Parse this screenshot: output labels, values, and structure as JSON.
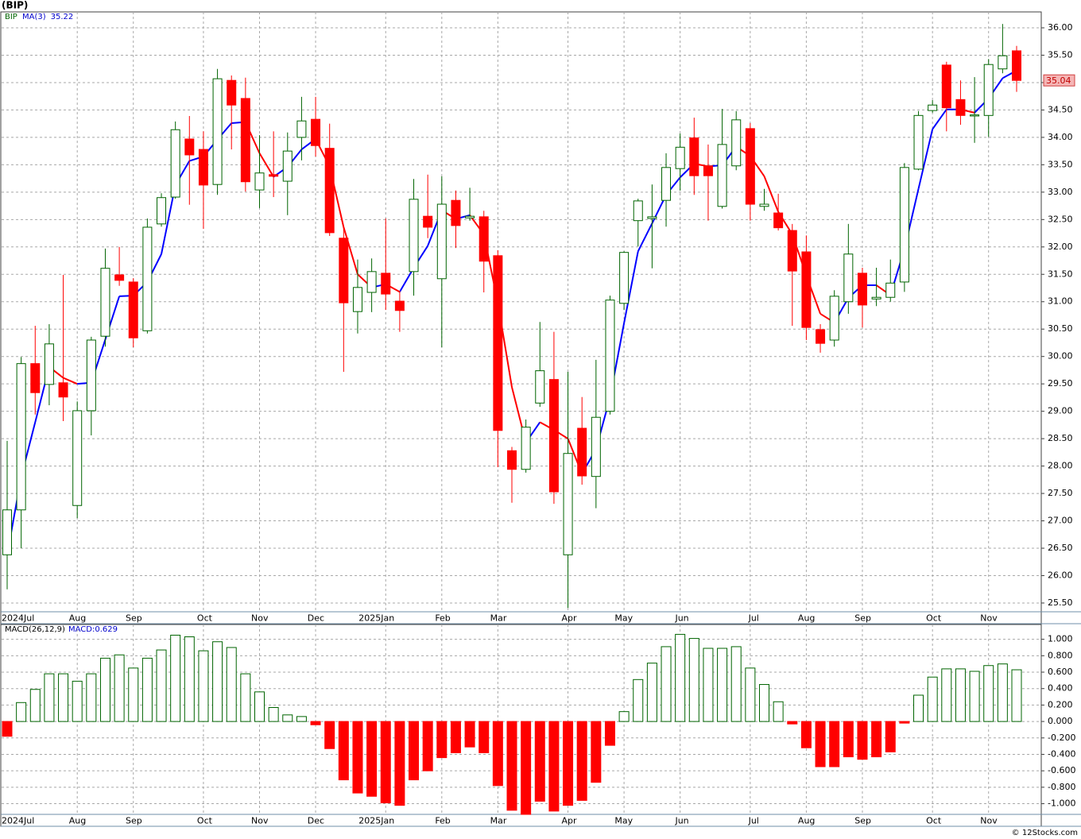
{
  "footer": "© 12Stocks.com",
  "chart_data": [
    {
      "type": "candlestick",
      "title": "(BIP)",
      "symbol": "BIP",
      "categories": [
        "2024Jul",
        null,
        null,
        null,
        null,
        "Aug",
        null,
        null,
        null,
        "Sep",
        null,
        null,
        null,
        null,
        "Oct",
        null,
        null,
        null,
        "Nov",
        null,
        null,
        null,
        "Dec",
        null,
        null,
        null,
        null,
        "2025Jan",
        null,
        null,
        null,
        "Feb",
        null,
        null,
        null,
        "Mar",
        null,
        null,
        null,
        null,
        "Apr",
        null,
        null,
        null,
        "May",
        null,
        null,
        null,
        "Jun",
        null,
        null,
        null,
        null,
        "Jul",
        null,
        null,
        null,
        "Aug",
        null,
        null,
        null,
        "Sep",
        null,
        null,
        null,
        null,
        "Oct",
        null,
        null,
        null,
        "Nov",
        null,
        null
      ],
      "open": [
        26.38,
        27.2,
        29.87,
        29.49,
        29.52,
        27.28,
        29.01,
        30.37,
        31.49,
        31.36,
        30.47,
        32.42,
        32.91,
        33.97,
        33.78,
        33.14,
        35.04,
        34.71,
        33.04,
        33.32,
        33.2,
        34.0,
        34.33,
        33.8,
        32.16,
        30.82,
        31.17,
        31.52,
        31.01,
        31.55,
        32.56,
        31.42,
        32.85,
        32.53,
        32.55,
        31.84,
        28.28,
        27.94,
        29.15,
        29.58,
        26.38,
        28.69,
        27.81,
        29.0,
        30.97,
        32.48,
        32.52,
        32.85,
        33.43,
        33.99,
        33.48,
        32.74,
        33.48,
        34.16,
        32.74,
        32.62,
        32.3,
        31.91,
        30.49,
        30.3,
        31.0,
        31.52,
        31.05,
        31.08,
        31.36,
        33.42,
        34.49,
        35.32,
        34.69,
        34.39,
        34.4,
        35.25,
        35.58
      ],
      "high": [
        28.46,
        29.99,
        30.56,
        30.59,
        31.49,
        29.18,
        30.36,
        31.97,
        32.0,
        31.43,
        32.52,
        32.98,
        34.29,
        34.39,
        34.11,
        35.25,
        35.13,
        35.09,
        34.04,
        34.11,
        34.09,
        34.74,
        34.74,
        34.25,
        32.36,
        31.77,
        31.79,
        32.52,
        31.2,
        33.24,
        33.32,
        33.29,
        33.03,
        33.08,
        32.66,
        31.94,
        28.35,
        28.85,
        30.63,
        30.45,
        29.72,
        29.26,
        29.94,
        31.11,
        31.92,
        32.88,
        33.14,
        33.71,
        34.07,
        34.36,
        33.87,
        34.52,
        34.48,
        34.26,
        33.06,
        32.97,
        32.42,
        32.21,
        30.59,
        31.21,
        32.42,
        31.62,
        31.62,
        31.77,
        33.53,
        34.48,
        34.68,
        35.38,
        35.04,
        35.1,
        35.43,
        36.07,
        35.67
      ],
      "low": [
        25.75,
        26.5,
        28.94,
        29.11,
        28.82,
        27.05,
        28.56,
        30.18,
        31.29,
        30.17,
        30.42,
        32.37,
        32.88,
        32.77,
        32.33,
        32.95,
        33.78,
        33.01,
        32.71,
        32.91,
        32.58,
        33.58,
        33.65,
        32.2,
        29.72,
        30.42,
        30.81,
        30.85,
        30.45,
        31.11,
        32.16,
        30.17,
        31.98,
        32.48,
        31.17,
        27.98,
        27.33,
        27.88,
        29.08,
        27.31,
        25.41,
        27.66,
        27.23,
        28.94,
        30.85,
        32.01,
        31.61,
        32.37,
        33.03,
        32.95,
        32.48,
        32.7,
        33.4,
        32.48,
        32.66,
        32.3,
        30.56,
        30.3,
        30.07,
        30.18,
        30.78,
        30.53,
        30.92,
        31.0,
        31.18,
        33.4,
        34.45,
        34.11,
        34.23,
        33.9,
        34.01,
        35.17,
        34.83
      ],
      "close": [
        27.2,
        29.87,
        29.34,
        30.23,
        29.26,
        29.01,
        30.3,
        31.61,
        31.39,
        30.34,
        32.36,
        32.9,
        34.14,
        33.68,
        33.13,
        35.07,
        34.59,
        33.19,
        33.35,
        33.29,
        33.75,
        34.3,
        33.85,
        32.26,
        30.98,
        31.26,
        31.55,
        31.14,
        30.84,
        32.87,
        32.36,
        32.78,
        32.39,
        32.56,
        31.74,
        28.65,
        27.94,
        28.71,
        29.74,
        27.53,
        28.23,
        27.82,
        28.89,
        31.03,
        31.9,
        32.84,
        32.55,
        33.45,
        33.82,
        33.3,
        33.3,
        33.87,
        34.32,
        32.78,
        32.78,
        32.35,
        31.56,
        30.53,
        30.24,
        31.1,
        31.87,
        30.94,
        31.08,
        31.34,
        33.45,
        34.4,
        34.59,
        34.54,
        34.4,
        34.41,
        35.33,
        35.49,
        35.04
      ],
      "up_color": "#006400",
      "down_color": "#ff0000",
      "ma": {
        "name": "MA(3)",
        "up_color": "#0000ff",
        "down_color": "#ff0000",
        "values": [
          26.38,
          27.8,
          28.8,
          29.81,
          29.61,
          29.5,
          29.52,
          30.31,
          31.1,
          31.11,
          31.36,
          31.87,
          33.13,
          33.57,
          33.65,
          33.96,
          34.26,
          34.28,
          33.71,
          33.28,
          33.46,
          33.78,
          33.97,
          33.47,
          32.36,
          31.5,
          31.26,
          31.32,
          31.18,
          31.62,
          32.02,
          32.67,
          32.51,
          32.58,
          32.23,
          30.98,
          29.44,
          28.43,
          28.8,
          28.66,
          28.5,
          27.86,
          28.31,
          29.25,
          30.61,
          31.92,
          32.43,
          32.95,
          33.27,
          33.52,
          33.47,
          33.49,
          33.83,
          33.66,
          33.29,
          32.64,
          32.23,
          31.48,
          30.78,
          30.62,
          31.07,
          31.3,
          31.3,
          31.12,
          31.96,
          33.06,
          34.15,
          34.51,
          34.51,
          34.45,
          34.71,
          35.08,
          35.22
        ]
      },
      "ylim": [
        25.34,
        36.29
      ],
      "yticks": [
        {
          "value": 25.5,
          "label": "25.50"
        },
        {
          "value": 26,
          "label": "26.00"
        },
        {
          "value": 26.5,
          "label": "26.50"
        },
        {
          "value": 27,
          "label": "27.00"
        },
        {
          "value": 27.5,
          "label": "27.50"
        },
        {
          "value": 28,
          "label": "28.00"
        },
        {
          "value": 28.5,
          "label": "28.50"
        },
        {
          "value": 29,
          "label": "29.00"
        },
        {
          "value": 29.5,
          "label": "29.50"
        },
        {
          "value": 30,
          "label": "30.00"
        },
        {
          "value": 30.5,
          "label": "30.50"
        },
        {
          "value": 31,
          "label": "31.00"
        },
        {
          "value": 31.5,
          "label": "31.50"
        },
        {
          "value": 32,
          "label": "32.00"
        },
        {
          "value": 32.5,
          "label": "32.50"
        },
        {
          "value": 33,
          "label": "33.00"
        },
        {
          "value": 33.5,
          "label": "33.50"
        },
        {
          "value": 34,
          "label": "34.00"
        },
        {
          "value": 34.5,
          "label": "34.50"
        },
        {
          "value": 35,
          "label": "35.00"
        },
        {
          "value": 35.5,
          "label": "35.50"
        },
        {
          "value": 36,
          "label": "36.00"
        }
      ],
      "grid": true
    },
    {
      "type": "bar",
      "title": "MACD(26,12,9)",
      "legend": "MACD:",
      "categories": [
        "2024Jul",
        null,
        null,
        null,
        null,
        "Aug",
        null,
        null,
        null,
        "Sep",
        null,
        null,
        null,
        null,
        "Oct",
        null,
        null,
        null,
        "Nov",
        null,
        null,
        null,
        "Dec",
        null,
        null,
        null,
        null,
        "2025Jan",
        null,
        null,
        null,
        "Feb",
        null,
        null,
        null,
        "Mar",
        null,
        null,
        null,
        null,
        "Apr",
        null,
        null,
        null,
        "May",
        null,
        null,
        null,
        "Jun",
        null,
        null,
        null,
        null,
        "Jul",
        null,
        null,
        null,
        "Aug",
        null,
        null,
        null,
        "Sep",
        null,
        null,
        null,
        null,
        "Oct",
        null,
        null,
        null,
        "Nov",
        null,
        null
      ],
      "values": [
        -0.18,
        0.23,
        0.39,
        0.58,
        0.58,
        0.49,
        0.58,
        0.77,
        0.81,
        0.65,
        0.77,
        0.87,
        1.05,
        1.03,
        0.86,
        0.97,
        0.9,
        0.58,
        0.36,
        0.17,
        0.08,
        0.06,
        -0.04,
        -0.33,
        -0.71,
        -0.87,
        -0.91,
        -0.99,
        -1.02,
        -0.71,
        -0.6,
        -0.44,
        -0.38,
        -0.31,
        -0.38,
        -0.78,
        -1.08,
        -1.13,
        -0.97,
        -1.09,
        -1.02,
        -0.96,
        -0.74,
        -0.29,
        0.12,
        0.51,
        0.71,
        0.91,
        1.06,
        1.01,
        0.89,
        0.89,
        0.91,
        0.65,
        0.45,
        0.24,
        -0.03,
        -0.32,
        -0.55,
        -0.55,
        -0.43,
        -0.46,
        -0.43,
        -0.37,
        -0.02,
        0.32,
        0.54,
        0.64,
        0.64,
        0.61,
        0.68,
        0.7,
        0.629
      ],
      "up_color": "#006400",
      "down_color": "#ff0000",
      "ylim": [
        -1.13,
        1.18
      ],
      "yticks": [
        {
          "value": -1,
          "label": "-1.000"
        },
        {
          "value": -0.8,
          "label": "-0.800"
        },
        {
          "value": -0.6,
          "label": "-0.600"
        },
        {
          "value": -0.4,
          "label": "-0.400"
        },
        {
          "value": -0.2,
          "label": "-0.200"
        },
        {
          "value": 0,
          "label": "0.000"
        },
        {
          "value": 0.2,
          "label": "0.200"
        },
        {
          "value": 0.4,
          "label": "0.400"
        },
        {
          "value": 0.6,
          "label": "0.600"
        },
        {
          "value": 0.8,
          "label": "0.800"
        },
        {
          "value": 1,
          "label": "1.000"
        }
      ],
      "grid": true
    }
  ]
}
